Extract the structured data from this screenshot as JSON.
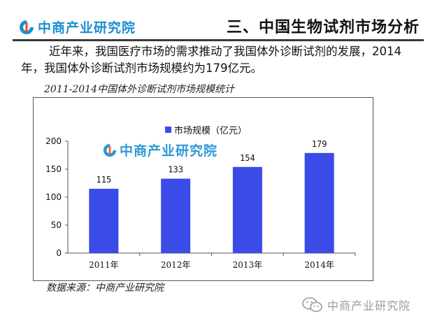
{
  "header": {
    "logo_text": "中商产业研究院",
    "title": "三、中国生物试剂市场分析"
  },
  "intro_text": "近年来，我国医疗市场的需求推动了我国体外诊断试剂的发展，2014年，我国体外诊断试剂市场规模约为179亿元。",
  "chart_caption": "2011-2014中国体外诊断试剂市场规模统计",
  "watermark_text": "中商产业研究院",
  "source_text": "数据来源：中商产业研究院",
  "footer_brand": "中商产业研究院",
  "colors": {
    "bar": "#3b4be8",
    "brand": "#1a8fd1",
    "brand_accent": "#e8501e"
  },
  "chart_data": {
    "type": "bar",
    "categories": [
      "2011年",
      "2012年",
      "2013年",
      "2014年"
    ],
    "series": [
      {
        "name": "市场规模（亿元）",
        "values": [
          115,
          133,
          154,
          179
        ]
      }
    ],
    "ylim": [
      0,
      200
    ],
    "yticks": [
      0,
      50,
      100,
      150,
      200
    ],
    "title": "",
    "xlabel": "",
    "ylabel": "",
    "grid": false,
    "legend_position": "top"
  }
}
